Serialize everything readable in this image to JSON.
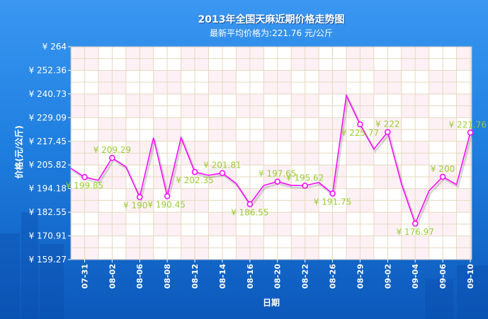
{
  "chart_data": {
    "type": "line",
    "title": "2013年全国天麻近期价格走势图",
    "subtitle": "最新平均价格为:221.76 元/公斤",
    "xlabel": "日期",
    "ylabel": "价格(元/公斤)",
    "ylim": [
      159.27,
      264
    ],
    "y_tick_labels": [
      "¥ 264",
      "¥ 252.36",
      "¥ 240.73",
      "¥ 229.09",
      "¥ 217.45",
      "¥ 205.82",
      "¥ 194.18",
      "¥ 182.55",
      "¥ 170.91",
      "¥ 159.27"
    ],
    "categories": [
      "",
      "07-31",
      "",
      "08-02",
      "",
      "08-06",
      "",
      "08-08",
      "",
      "08-12",
      "",
      "08-14",
      "",
      "08-16",
      "",
      "08-20",
      "",
      "08-22",
      "",
      "08-26",
      "",
      "08-29",
      "",
      "09-02",
      "",
      "09-04",
      "",
      "09-06",
      "",
      "09-10"
    ],
    "series": [
      {
        "values": [
          204.2,
          199.85,
          198.3,
          209.29,
          204.9,
          190,
          219.3,
          190.45,
          219.3,
          202.35,
          200.7,
          201.81,
          196.7,
          186.55,
          195.7,
          197.65,
          195.8,
          195.62,
          197.2,
          191.75,
          240.0,
          225.77,
          213.6,
          222,
          196.5,
          176.97,
          193.1,
          200,
          196.2,
          221.76
        ],
        "data_labels": [
          "",
          "¥ 199.85",
          "",
          "¥ 209.29",
          "",
          "¥ 190",
          "",
          "¥ 190.45",
          "",
          "¥ 202.35",
          "",
          "¥ 201.81",
          "",
          "¥ 186.55",
          "",
          "¥ 197.65",
          "",
          "¥ 195.62",
          "",
          "¥ 191.75",
          "",
          "¥ 225.77",
          "",
          "¥ 222",
          "",
          "¥ 176.97",
          "",
          "¥ 200",
          "",
          "¥ 221.76"
        ]
      }
    ],
    "grid": true
  },
  "colors": {
    "series_line": "#ff00ff",
    "data_label": "#9acd32",
    "background": "#1f7fe0",
    "plot_background": "#ffffff",
    "grid": "#e6d8bf"
  }
}
